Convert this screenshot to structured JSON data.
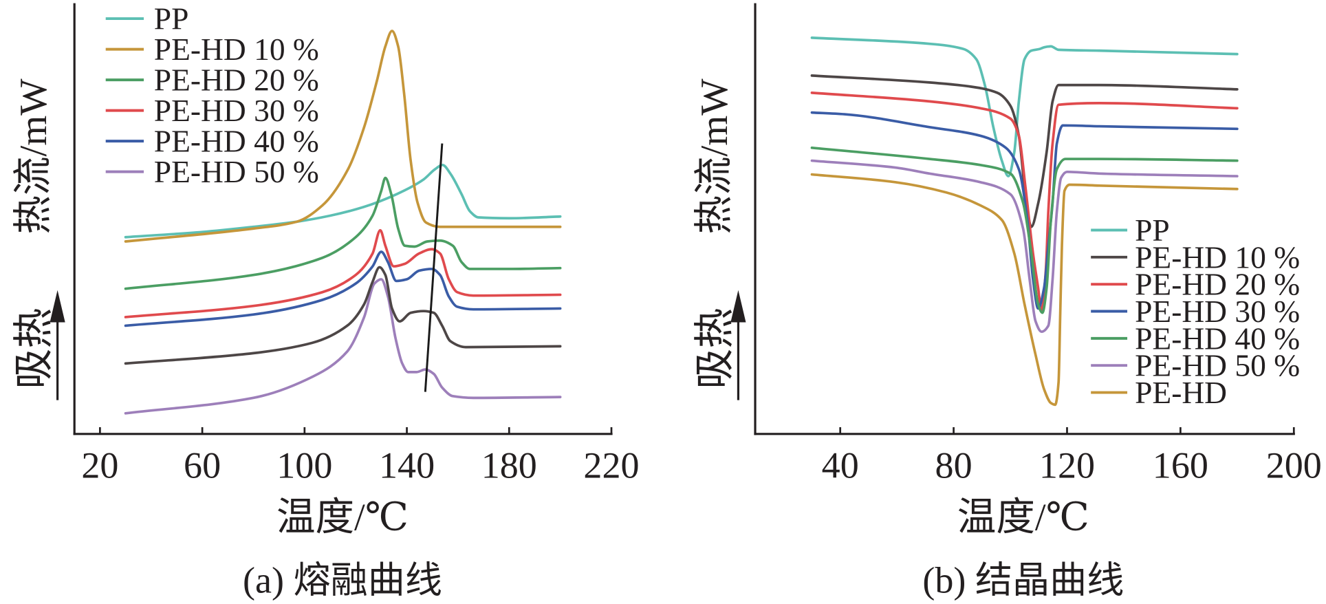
{
  "chart_data": [
    {
      "type": "line",
      "caption": "(a) 熔融曲线",
      "xlabel": "温度/℃",
      "ylabel": "热流/mW",
      "annotation": "吸热",
      "xlim": [
        10,
        220
      ],
      "ylim": [
        0,
        50
      ],
      "xticks": [
        20,
        60,
        100,
        140,
        180,
        220
      ],
      "yticks": [],
      "grid": false,
      "legend": "top-left",
      "series": [
        {
          "name": "PP",
          "color": "#5cbfb3",
          "points": [
            [
              30,
              22.9
            ],
            [
              60,
              23.5
            ],
            [
              80,
              24.1
            ],
            [
              97,
              24.7
            ],
            [
              110,
              25.4
            ],
            [
              123,
              26.4
            ],
            [
              136,
              27.9
            ],
            [
              146.5,
              29.6
            ],
            [
              151,
              30.8
            ],
            [
              154,
              31.3
            ],
            [
              157,
              30.3
            ],
            [
              161.4,
              27.9
            ],
            [
              164.7,
              25.9
            ],
            [
              168,
              25.2
            ],
            [
              180,
              25.1
            ],
            [
              200,
              25.3
            ]
          ]
        },
        {
          "name": "PE-HD 10 %",
          "color": "#c5963a",
          "points": [
            [
              30,
              22.4
            ],
            [
              80,
              23.9
            ],
            [
              97,
              24.7
            ],
            [
              107,
              26.6
            ],
            [
              117,
              30.8
            ],
            [
              123.3,
              35.7
            ],
            [
              128.3,
              41.1
            ],
            [
              131.6,
              45.1
            ],
            [
              134.2,
              46.9
            ],
            [
              136.6,
              45.1
            ],
            [
              138.9,
              39.7
            ],
            [
              141.5,
              31.8
            ],
            [
              144.2,
              26.9
            ],
            [
              147.5,
              24.6
            ],
            [
              153,
              24.1
            ],
            [
              200,
              24.1
            ]
          ]
        },
        {
          "name": "PE-HD 20 %",
          "color": "#4b9e63",
          "points": [
            [
              30,
              16.9
            ],
            [
              80,
              18.5
            ],
            [
              107,
              20.5
            ],
            [
              120,
              22.9
            ],
            [
              126.6,
              25.4
            ],
            [
              130,
              28.3
            ],
            [
              131.6,
              29.8
            ],
            [
              133.9,
              27.9
            ],
            [
              136.6,
              23.9
            ],
            [
              139.2,
              21.9
            ],
            [
              143,
              21.8
            ],
            [
              148,
              22.4
            ],
            [
              153,
              22.5
            ],
            [
              158,
              21.9
            ],
            [
              161.4,
              20.0
            ],
            [
              164.7,
              19.2
            ],
            [
              180,
              19.2
            ],
            [
              200,
              19.3
            ]
          ]
        },
        {
          "name": "PE-HD 30 %",
          "color": "#e04a4d",
          "points": [
            [
              30,
              13.6
            ],
            [
              80,
              14.9
            ],
            [
              107,
              16.5
            ],
            [
              120,
              18.5
            ],
            [
              126.6,
              21.0
            ],
            [
              129.6,
              23.7
            ],
            [
              131.6,
              21.9
            ],
            [
              134.9,
              19.5
            ],
            [
              139.2,
              19.8
            ],
            [
              144.8,
              21.0
            ],
            [
              149.8,
              21.5
            ],
            [
              153,
              21.0
            ],
            [
              156.4,
              18.0
            ],
            [
              159.7,
              16.5
            ],
            [
              166,
              16.1
            ],
            [
              200,
              16.2
            ]
          ]
        },
        {
          "name": "PE-HD 40 %",
          "color": "#3a5ca6",
          "points": [
            [
              30,
              12.6
            ],
            [
              80,
              13.9
            ],
            [
              107,
              15.6
            ],
            [
              120,
              17.5
            ],
            [
              126.6,
              19.5
            ],
            [
              130,
              21.2
            ],
            [
              132.6,
              20.0
            ],
            [
              135.9,
              17.8
            ],
            [
              140,
              18.0
            ],
            [
              144.8,
              19.0
            ],
            [
              149.8,
              19.2
            ],
            [
              153,
              18.5
            ],
            [
              156.4,
              16.0
            ],
            [
              159.7,
              14.8
            ],
            [
              166,
              14.5
            ],
            [
              200,
              14.6
            ]
          ]
        },
        {
          "name": "PE-HD 50 %",
          "color": "#9d7fba",
          "points": [
            [
              30,
              2.4
            ],
            [
              80,
              4.2
            ],
            [
              103.4,
              6.7
            ],
            [
              116.7,
              9.6
            ],
            [
              123.3,
              13.6
            ],
            [
              127.3,
              17.5
            ],
            [
              130,
              18.0
            ],
            [
              132.6,
              16.0
            ],
            [
              135.6,
              11.1
            ],
            [
              138.2,
              8.2
            ],
            [
              140.5,
              7.2
            ],
            [
              143.8,
              7.2
            ],
            [
              147.2,
              7.5
            ],
            [
              150.5,
              7.0
            ],
            [
              153.8,
              5.4
            ],
            [
              158,
              4.4
            ],
            [
              166,
              4.2
            ],
            [
              200,
              4.3
            ]
          ]
        },
        {
          "color": "#4d4646",
          "points": [
            [
              30,
              8.2
            ],
            [
              80,
              9.4
            ],
            [
              103,
              10.6
            ],
            [
              116.7,
              12.6
            ],
            [
              123.3,
              15.1
            ],
            [
              126.6,
              17.7
            ],
            [
              129.3,
              19.4
            ],
            [
              131.6,
              18.5
            ],
            [
              134.2,
              14.6
            ],
            [
              137.2,
              13.1
            ],
            [
              141.5,
              14.1
            ],
            [
              146.5,
              14.3
            ],
            [
              150.5,
              14.1
            ],
            [
              153.8,
              12.6
            ],
            [
              157,
              10.8
            ],
            [
              163,
              10.1
            ],
            [
              200,
              10.2
            ]
          ]
        }
      ],
      "trend_line": [
        [
          147.2,
          4.9
        ],
        [
          153.8,
          33.8
        ]
      ]
    },
    {
      "type": "line",
      "caption": "(b) 结晶曲线",
      "xlabel": "温度/℃",
      "ylabel": "热流/mW",
      "annotation": "吸热",
      "xlim": [
        10,
        200
      ],
      "ylim": [
        0,
        50
      ],
      "xticks": [
        40,
        80,
        120,
        160,
        200
      ],
      "yticks": [],
      "grid": false,
      "legend": "bottom-right",
      "series": [
        {
          "name": "PP",
          "color": "#5cbfb3",
          "points": [
            [
              30,
              46.1
            ],
            [
              71.5,
              45.4
            ],
            [
              83.4,
              44.8
            ],
            [
              88,
              43.6
            ],
            [
              91,
              40.6
            ],
            [
              94,
              35.7
            ],
            [
              97,
              31.8
            ],
            [
              99.3,
              30.0
            ],
            [
              101.4,
              32.8
            ],
            [
              103,
              38.7
            ],
            [
              105,
              43.6
            ],
            [
              107.4,
              44.6
            ],
            [
              110.4,
              44.8
            ],
            [
              112,
              45.0
            ],
            [
              114.3,
              45.1
            ],
            [
              117,
              44.7
            ],
            [
              131.4,
              44.6
            ],
            [
              180,
              44.2
            ]
          ]
        },
        {
          "name": "PE-HD 10 %",
          "color": "#4d4646",
          "points": [
            [
              30,
              41.7
            ],
            [
              71.5,
              40.9
            ],
            [
              86.4,
              40.4
            ],
            [
              95.4,
              39.7
            ],
            [
              100,
              38.2
            ],
            [
              103,
              34.7
            ],
            [
              105.3,
              27.9
            ],
            [
              107.4,
              24.1
            ],
            [
              109.8,
              26.8
            ],
            [
              112.8,
              32.8
            ],
            [
              114.9,
              38.7
            ],
            [
              117,
              40.6
            ],
            [
              131.4,
              40.6
            ],
            [
              180,
              40.1
            ]
          ]
        },
        {
          "name": "PE-HD 20 %",
          "color": "#e04a4d",
          "points": [
            [
              30,
              39.7
            ],
            [
              71.5,
              38.7
            ],
            [
              89.4,
              37.9
            ],
            [
              100,
              36.7
            ],
            [
              103,
              34.7
            ],
            [
              105.3,
              28.8
            ],
            [
              108,
              21.0
            ],
            [
              109.8,
              17.0
            ],
            [
              111,
              14.3
            ],
            [
              112.5,
              19.0
            ],
            [
              113.4,
              25.9
            ],
            [
              114.9,
              33.8
            ],
            [
              117,
              38.3
            ],
            [
              131.4,
              38.5
            ],
            [
              180,
              37.9
            ]
          ]
        },
        {
          "name": "PE-HD 30 %",
          "color": "#3a5ca6",
          "points": [
            [
              30,
              37.4
            ],
            [
              41.5,
              37.2
            ],
            [
              71.5,
              35.7
            ],
            [
              89.4,
              34.7
            ],
            [
              98.4,
              33.3
            ],
            [
              103,
              30.8
            ],
            [
              106,
              24.9
            ],
            [
              108,
              18.0
            ],
            [
              109.8,
              14.6
            ],
            [
              111.9,
              17.0
            ],
            [
              113.4,
              21.9
            ],
            [
              114.9,
              26.9
            ],
            [
              116.4,
              33.8
            ],
            [
              118.5,
              35.9
            ],
            [
              131.4,
              35.8
            ],
            [
              180,
              35.5
            ]
          ]
        },
        {
          "name": "PE-HD 40 %",
          "color": "#4b9e63",
          "points": [
            [
              30,
              33.3
            ],
            [
              71.5,
              32.0
            ],
            [
              89.4,
              31.3
            ],
            [
              100,
              30.3
            ],
            [
              104.5,
              26.9
            ],
            [
              107.4,
              21.0
            ],
            [
              109.8,
              15.1
            ],
            [
              111.3,
              14.1
            ],
            [
              112.8,
              17.0
            ],
            [
              114.3,
              24.9
            ],
            [
              116.4,
              30.8
            ],
            [
              119.4,
              32.0
            ],
            [
              131.4,
              32.0
            ],
            [
              180,
              31.8
            ]
          ]
        },
        {
          "name": "PE-HD 50 %",
          "color": "#9d7fba",
          "points": [
            [
              30,
              31.8
            ],
            [
              59.4,
              31.0
            ],
            [
              71.5,
              30.3
            ],
            [
              89.4,
              29.3
            ],
            [
              100,
              27.9
            ],
            [
              104.5,
              23.9
            ],
            [
              106.8,
              18.0
            ],
            [
              108.9,
              13.1
            ],
            [
              111,
              11.9
            ],
            [
              113.4,
              12.6
            ],
            [
              114.9,
              18.0
            ],
            [
              116.4,
              25.9
            ],
            [
              117.9,
              29.8
            ],
            [
              120,
              30.5
            ],
            [
              131.4,
              30.3
            ],
            [
              180,
              30.0
            ]
          ]
        },
        {
          "name": "PE-HD",
          "color": "#c5963a",
          "points": [
            [
              30,
              30.2
            ],
            [
              59.4,
              29.3
            ],
            [
              77.4,
              28.1
            ],
            [
              89.4,
              26.6
            ],
            [
              97,
              24.9
            ],
            [
              101.4,
              21.0
            ],
            [
              105,
              15.1
            ],
            [
              108.9,
              9.2
            ],
            [
              111.9,
              5.2
            ],
            [
              114.3,
              3.6
            ],
            [
              115.8,
              3.4
            ],
            [
              117,
              6.0
            ],
            [
              117.6,
              14.0
            ],
            [
              118.2,
              22.0
            ],
            [
              119.1,
              28.3
            ],
            [
              120.9,
              29.0
            ],
            [
              131.4,
              28.9
            ],
            [
              180,
              28.5
            ]
          ]
        }
      ]
    }
  ]
}
